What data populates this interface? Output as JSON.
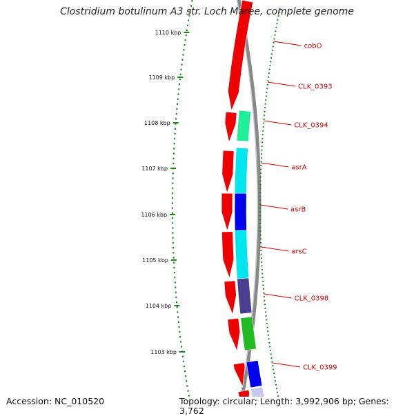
{
  "header": {
    "title": "Clostridium botulinum A3 str. Loch Maree, complete genome"
  },
  "footer": {
    "accession": "Accession: NC_010520",
    "summary": "Topology: circular; Length: 3,992,906 bp; Genes: 3,762"
  },
  "colors": {
    "backbone": "#888888",
    "tick": "#118811",
    "label": "#cc0000",
    "gene_red": "#ee0000",
    "cog_blue": "#0000ee",
    "cog_green": "#22bb22",
    "cog_purple": "#4a3f8e",
    "cog_cyan": "#00e5ee",
    "cog_spring": "#22ee99",
    "cog_lavender": "#c8c8ee"
  },
  "diagram": {
    "type": "circular-genome-map-zoom",
    "kbp_labels": [
      "1103 kbp",
      "1104 kbp",
      "1105 kbp",
      "1106 kbp",
      "1107 kbp",
      "1108 kbp",
      "1109 kbp",
      "1110 kbp"
    ],
    "genes": [
      {
        "label": "cobO",
        "cog": "cog_blue"
      },
      {
        "label": "CLK_0393",
        "cog": "cog_green"
      },
      {
        "label": "CLK_0394",
        "cog": "cog_purple"
      },
      {
        "label": "asrA",
        "cog": "cog_cyan"
      },
      {
        "label": "asrB",
        "cog": "cog_blue"
      },
      {
        "label": "arsC",
        "cog": "cog_cyan"
      },
      {
        "label": "CLK_0398",
        "cog": "cog_spring"
      },
      {
        "label": "CLK_0399",
        "cog": "gene_red"
      }
    ]
  }
}
